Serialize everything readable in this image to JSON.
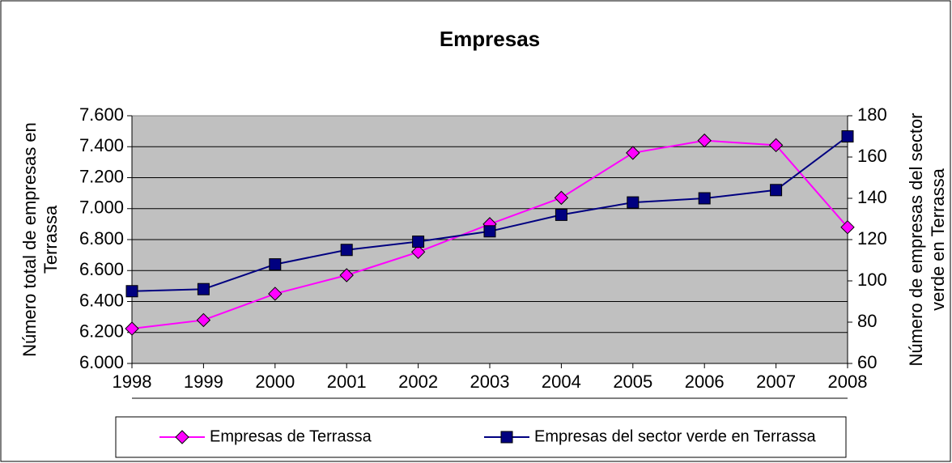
{
  "chart_data": {
    "type": "line",
    "title": "Empresas",
    "ylabel": [
      "Número total de empresas en",
      "Terrassa"
    ],
    "y2label": [
      "Número de empresas del sector",
      "verde en Terrassa"
    ],
    "x": [
      1998,
      1999,
      2000,
      2001,
      2002,
      2003,
      2004,
      2005,
      2006,
      2007,
      2008
    ],
    "xlim": [
      1998,
      2008
    ],
    "xticks": [
      1998,
      1999,
      2000,
      2001,
      2002,
      2003,
      2004,
      2005,
      2006,
      2007,
      2008
    ],
    "ylim": [
      6000,
      7600
    ],
    "yticks": [
      {
        "value": 6000,
        "label": "6.000"
      },
      {
        "value": 6200,
        "label": "6.200"
      },
      {
        "value": 6400,
        "label": "6.400"
      },
      {
        "value": 6600,
        "label": "6.600"
      },
      {
        "value": 6800,
        "label": "6.800"
      },
      {
        "value": 7000,
        "label": "7.000"
      },
      {
        "value": 7200,
        "label": "7.200"
      },
      {
        "value": 7400,
        "label": "7.400"
      },
      {
        "value": 7600,
        "label": "7.600"
      }
    ],
    "y2lim": [
      60,
      180
    ],
    "y2ticks": [
      60,
      80,
      100,
      120,
      140,
      160,
      180
    ],
    "grid": true,
    "legend": "bottom",
    "series": [
      {
        "name": "Empresas de Terrassa",
        "color": "#ff00ff",
        "marker": "diamond",
        "values": [
          6225,
          6280,
          6450,
          6570,
          6720,
          6900,
          7070,
          7360,
          7440,
          7410,
          6880
        ]
      },
      {
        "name": "Empresas del sector verde en Terrassa",
        "color": "#000080",
        "marker": "square",
        "axis": "y2",
        "values": [
          95,
          96,
          108,
          115,
          119,
          124,
          132,
          138,
          140,
          144,
          170
        ]
      }
    ]
  }
}
